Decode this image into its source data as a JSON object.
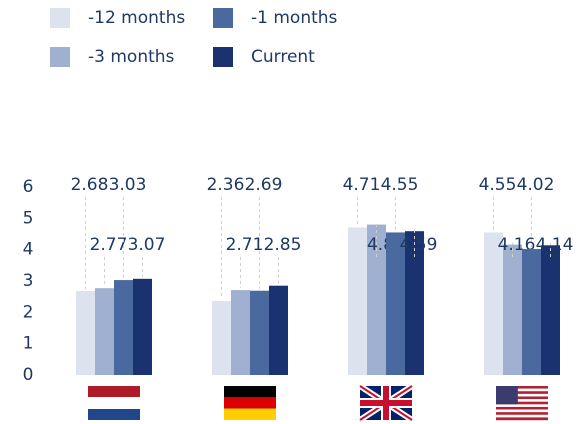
{
  "chart_data": {
    "type": "bar",
    "categories": [
      null,
      null,
      null,
      null
    ],
    "series": [
      {
        "name": "-12 months",
        "color": "#dde3ee",
        "values": [
          2.68,
          2.36,
          4.71,
          4.55
        ]
      },
      {
        "name": "-3 months",
        "color": "#9fb0d1",
        "values": [
          2.77,
          2.71,
          4.8,
          4.16
        ]
      },
      {
        "name": "-1 months",
        "color": "#4a6a9f",
        "values": [
          3.03,
          2.69,
          4.55,
          4.02
        ]
      },
      {
        "name": "Current",
        "color": "#1a3370",
        "values": [
          3.07,
          2.85,
          4.59,
          4.14
        ]
      }
    ],
    "ylim": [
      0,
      6
    ],
    "yticks": [
      0,
      1,
      2,
      3,
      4,
      5,
      6
    ]
  }
}
